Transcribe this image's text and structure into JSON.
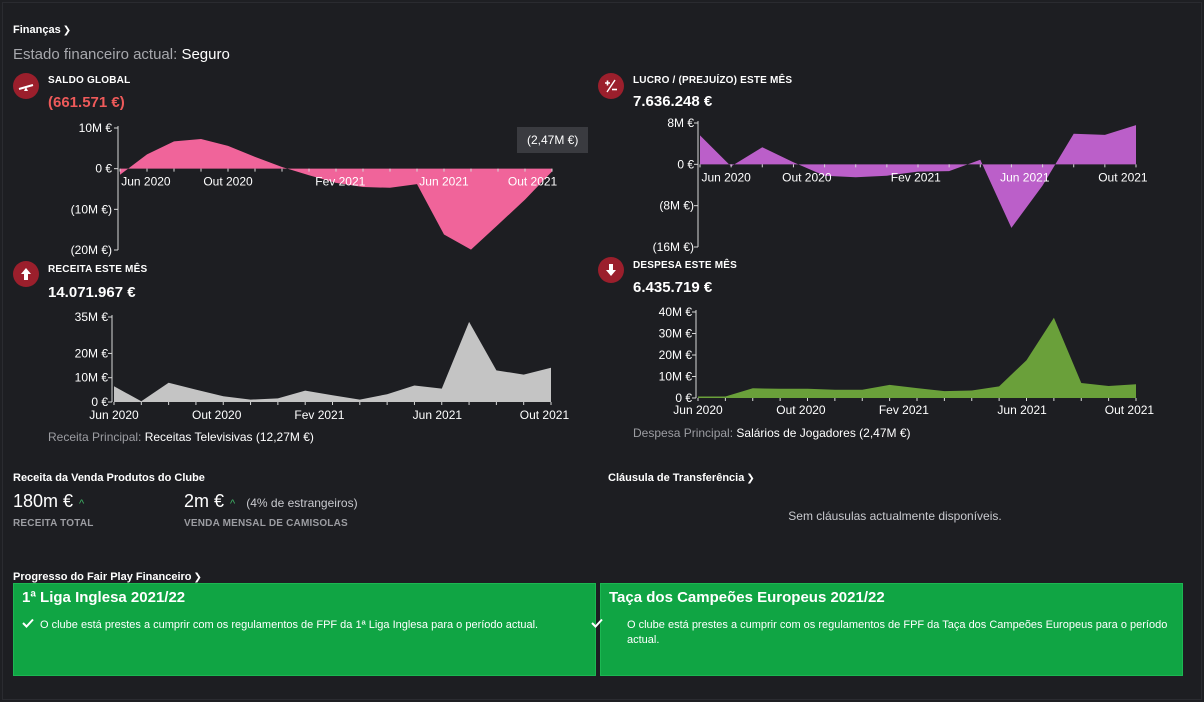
{
  "header": {
    "finance_title": "Finanças",
    "status_label": "Estado financeiro actual:",
    "status_value": "Seguro"
  },
  "kpis": {
    "saldo": {
      "title": "SALDO GLOBAL",
      "value": "(661.571 €)",
      "icon": "seesaw-icon",
      "color": "#f0649a"
    },
    "lucro": {
      "title": "LUCRO / (PREJUÍZO) ESTE MÊS",
      "value": "7.636.248 €",
      "icon": "plus-minus-icon",
      "color": "#bb5fc9"
    },
    "receita": {
      "title": "RECEITA ESTE MÊS",
      "value": "14.071.967 €",
      "icon": "arrow-up-icon",
      "color": "#c4c4c4"
    },
    "despesa": {
      "title": "DESPESA ESTE MÊS",
      "value": "6.435.719 €",
      "icon": "arrow-down-icon",
      "color": "#6aa03a"
    }
  },
  "tooltip": "(2,47M €)",
  "receita_principal": {
    "label": "Receita Principal:",
    "value": "Receitas Televisivas (12,27M €)"
  },
  "despesa_principal": {
    "label": "Despesa Principal:",
    "value": "Salários de Jogadores (2,47M €)"
  },
  "merch": {
    "title": "Receita da Venda Produtos do Clube",
    "total_value": "180m €",
    "total_caption": "RECEITA TOTAL",
    "monthly_value": "2m €",
    "monthly_note": "(4% de estrangeiros)",
    "monthly_caption": "VENDA MENSAL DE CAMISOLAS"
  },
  "clausula": {
    "title": "Cláusula de Transferência",
    "empty_text": "Sem cláusulas actualmente disponíveis."
  },
  "ffp": {
    "title": "Progresso do Fair Play Financeiro",
    "cards": [
      {
        "title": "1ª Liga Inglesa 2021/22",
        "text": "O clube está prestes a cumprir com os regulamentos de FPF da 1ª Liga Inglesa para o período actual."
      },
      {
        "title": "Taça dos Campeões Europeus 2021/22",
        "text": "O clube está prestes a cumprir com os regulamentos de FPF da Taça dos Campeões Europeus para o período actual."
      }
    ]
  },
  "chart_data": [
    {
      "id": "saldo",
      "type": "area",
      "title": "SALDO GLOBAL",
      "x_ticks": [
        "Jun 2020",
        "Out 2020",
        "Fev 2021",
        "Jun 2021",
        "Out 2021"
      ],
      "y_ticks": [
        "10M €",
        "0 €",
        "(10M €)",
        "(20M €)"
      ],
      "ylim": [
        -20,
        10
      ],
      "unit": "M €",
      "values": [
        -1.5,
        3.5,
        6.7,
        7.3,
        5.6,
        2.9,
        0.4,
        -1.6,
        -3.5,
        -4.5,
        -4.7,
        -3.8,
        -16.2,
        -19.9,
        -13.8,
        -7.6,
        -0.7
      ],
      "color": "#f0649a"
    },
    {
      "id": "lucro",
      "type": "area",
      "title": "LUCRO / (PREJUÍZO) ESTE MÊS",
      "x_ticks": [
        "Jun 2020",
        "Out 2020",
        "Fev 2021",
        "Jun 2021",
        "Out 2021"
      ],
      "y_ticks": [
        "8M €",
        "0 €",
        "(8M €)",
        "(16M €)"
      ],
      "ylim": [
        -16,
        8
      ],
      "unit": "M €",
      "values": [
        5.6,
        -0.4,
        3.3,
        0.4,
        -2.2,
        -2.5,
        -2.2,
        -1.4,
        -1.3,
        0.9,
        -12.3,
        -4.1,
        5.9,
        5.7,
        7.6
      ],
      "color": "#bb5fc9"
    },
    {
      "id": "receita",
      "type": "area",
      "title": "RECEITA ESTE MÊS",
      "x_ticks": [
        "Jun 2020",
        "Out 2020",
        "Fev 2021",
        "Jun 2021",
        "Out 2021"
      ],
      "y_ticks": [
        "35M €",
        "20M €",
        "10M €",
        "0 €"
      ],
      "ylim": [
        0,
        35
      ],
      "unit": "M €",
      "values": [
        6.5,
        0.3,
        7.9,
        5.1,
        2.4,
        1.0,
        1.5,
        4.7,
        2.8,
        1.0,
        3.2,
        6.8,
        5.5,
        33.0,
        13.0,
        11.3,
        14.1
      ],
      "color": "#c4c4c4"
    },
    {
      "id": "despesa",
      "type": "area",
      "title": "DESPESA ESTE MÊS",
      "x_ticks": [
        "Jun 2020",
        "Out 2020",
        "Fev 2021",
        "Jun 2021",
        "Out 2021"
      ],
      "y_ticks": [
        "40M €",
        "30M €",
        "20M €",
        "10M €",
        "0 €"
      ],
      "ylim": [
        0,
        40
      ],
      "unit": "M €",
      "values": [
        0.7,
        0.7,
        4.5,
        4.3,
        4.3,
        3.8,
        3.8,
        6.1,
        4.6,
        3.2,
        3.5,
        5.4,
        17.6,
        37.3,
        7.0,
        5.6,
        6.4
      ],
      "color": "#6aa03a"
    }
  ]
}
